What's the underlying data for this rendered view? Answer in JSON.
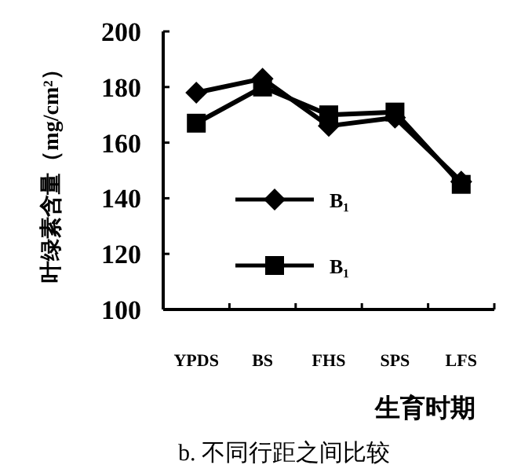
{
  "chart_data": {
    "type": "line",
    "ylabel": "叶绿素含量（mg/cm²）",
    "xlabel": "生育时期",
    "annotations": [
      "b. 不同行距之间比较"
    ],
    "categories": [
      "YPDS",
      "BS",
      "FHS",
      "SPS",
      "LFS"
    ],
    "series": [
      {
        "name": "B₁",
        "color": "#000000",
        "marker": "diamond",
        "values": [
          178,
          183,
          166,
          169,
          146
        ]
      },
      {
        "name": "B₁",
        "color": "#000000",
        "marker": "square",
        "values": [
          167,
          180,
          170,
          171,
          145
        ]
      }
    ],
    "ylim": [
      100,
      200
    ],
    "yticks": [
      100,
      120,
      140,
      160,
      180,
      200
    ],
    "grid": false,
    "legend": "center",
    "line_style": "solid"
  }
}
